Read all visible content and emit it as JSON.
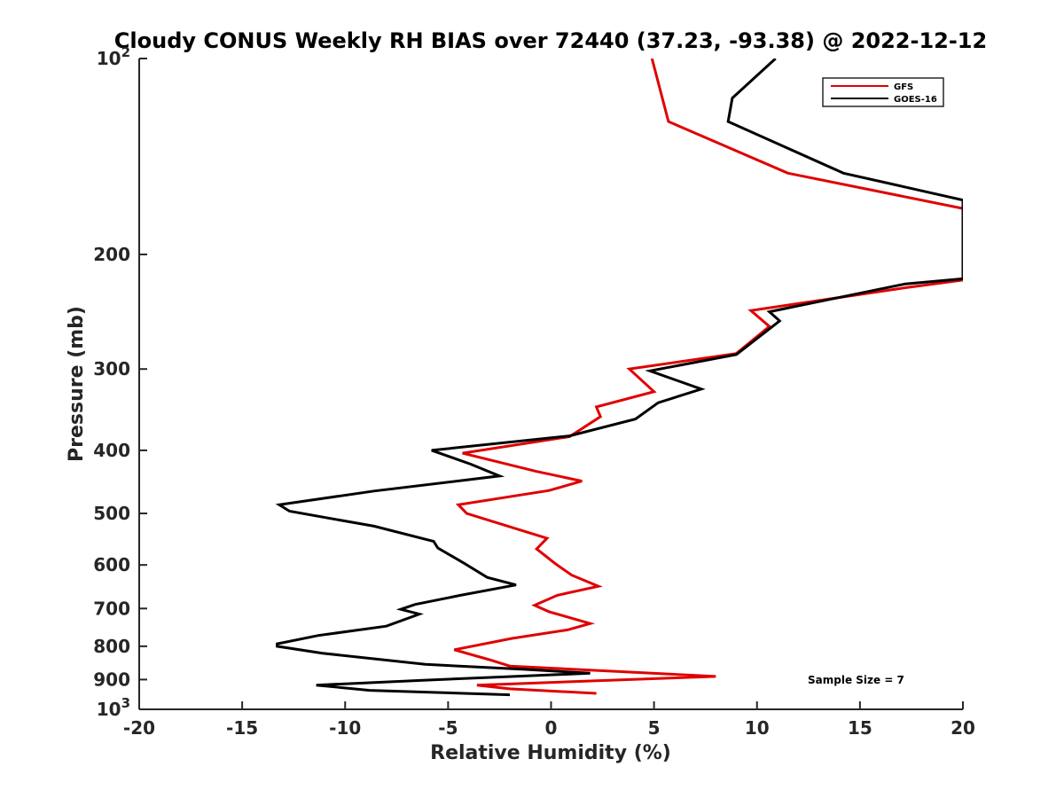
{
  "chart_data": {
    "type": "line",
    "title": "Cloudy CONUS Weekly RH BIAS over 72440 (37.23, -93.38) @ 2022-12-12",
    "xlabel": "Relative Humidity (%)",
    "ylabel": "Pressure (mb)",
    "xlim": [
      -20,
      20
    ],
    "ylim": [
      1000,
      100
    ],
    "y_scale": "log",
    "y_reversed": true,
    "grid": false,
    "legend_position": "top-right",
    "x_ticks": [
      -20,
      -15,
      -10,
      -5,
      0,
      5,
      10,
      15,
      20
    ],
    "x_tick_labels": [
      "-20",
      "-15",
      "-10",
      "-5",
      "0",
      "5",
      "10",
      "15",
      "20"
    ],
    "y_ticks": [
      {
        "value": 100,
        "label": "10",
        "sup": "2"
      },
      {
        "value": 200,
        "label": "200",
        "sup": ""
      },
      {
        "value": 300,
        "label": "300",
        "sup": ""
      },
      {
        "value": 400,
        "label": "400",
        "sup": ""
      },
      {
        "value": 500,
        "label": "500",
        "sup": ""
      },
      {
        "value": 600,
        "label": "600",
        "sup": ""
      },
      {
        "value": 700,
        "label": "700",
        "sup": ""
      },
      {
        "value": 800,
        "label": "800",
        "sup": ""
      },
      {
        "value": 900,
        "label": "900",
        "sup": ""
      },
      {
        "value": 1000,
        "label": "10",
        "sup": "3"
      }
    ],
    "annotation": "Sample Size = 7",
    "series": [
      {
        "name": "GFS",
        "color": "#e00000",
        "points": [
          [
            4.9,
            100
          ],
          [
            5.7,
            125
          ],
          [
            11.5,
            150
          ],
          [
            20.0,
            170
          ],
          [
            20.0,
            219
          ],
          [
            17.2,
            225
          ],
          [
            9.7,
            244
          ],
          [
            10.6,
            258
          ],
          [
            9.0,
            284
          ],
          [
            3.8,
            300
          ],
          [
            5.0,
            325
          ],
          [
            2.2,
            343
          ],
          [
            2.4,
            355
          ],
          [
            0.9,
            381
          ],
          [
            -4.3,
            404
          ],
          [
            -0.7,
            431
          ],
          [
            1.5,
            446
          ],
          [
            -0.1,
            461
          ],
          [
            -4.5,
            485
          ],
          [
            -4.1,
            500
          ],
          [
            -0.2,
            546
          ],
          [
            -0.7,
            567
          ],
          [
            0.2,
            597
          ],
          [
            1.0,
            622
          ],
          [
            2.3,
            647
          ],
          [
            0.3,
            668
          ],
          [
            -0.8,
            692
          ],
          [
            -0.1,
            708
          ],
          [
            1.9,
            738
          ],
          [
            0.8,
            755
          ],
          [
            -1.9,
            778
          ],
          [
            -4.7,
            810
          ],
          [
            -3.0,
            839
          ],
          [
            -2.0,
            858
          ],
          [
            8.0,
            890
          ],
          [
            -3.6,
            918
          ],
          [
            -2.0,
            930
          ],
          [
            2.2,
            945
          ]
        ]
      },
      {
        "name": "GOES-16",
        "color": "#000000",
        "points": [
          [
            10.9,
            100
          ],
          [
            8.8,
            115
          ],
          [
            8.6,
            125
          ],
          [
            14.2,
            150
          ],
          [
            20.0,
            165
          ],
          [
            20.0,
            218
          ],
          [
            17.2,
            222
          ],
          [
            10.6,
            245
          ],
          [
            11.1,
            253
          ],
          [
            9.0,
            285
          ],
          [
            4.8,
            302
          ],
          [
            7.3,
            322
          ],
          [
            5.2,
            338
          ],
          [
            4.1,
            358
          ],
          [
            0.9,
            380
          ],
          [
            -5.8,
            400
          ],
          [
            -3.9,
            420
          ],
          [
            -2.5,
            438
          ],
          [
            -8.6,
            462
          ],
          [
            -13.2,
            485
          ],
          [
            -12.7,
            496
          ],
          [
            -8.6,
            523
          ],
          [
            -5.7,
            552
          ],
          [
            -5.5,
            565
          ],
          [
            -4.2,
            597
          ],
          [
            -3.1,
            627
          ],
          [
            -1.7,
            644
          ],
          [
            -4.4,
            668
          ],
          [
            -6.6,
            690
          ],
          [
            -7.3,
            702
          ],
          [
            -6.4,
            714
          ],
          [
            -8.0,
            745
          ],
          [
            -11.3,
            770
          ],
          [
            -13.3,
            793
          ],
          [
            -13.3,
            800
          ],
          [
            -11.1,
            820
          ],
          [
            -6.1,
            853
          ],
          [
            -1.3,
            868
          ],
          [
            1.9,
            880
          ],
          [
            -6.1,
            902
          ],
          [
            -11.4,
            918
          ],
          [
            -8.8,
            935
          ],
          [
            -2.0,
            950
          ]
        ]
      }
    ]
  }
}
